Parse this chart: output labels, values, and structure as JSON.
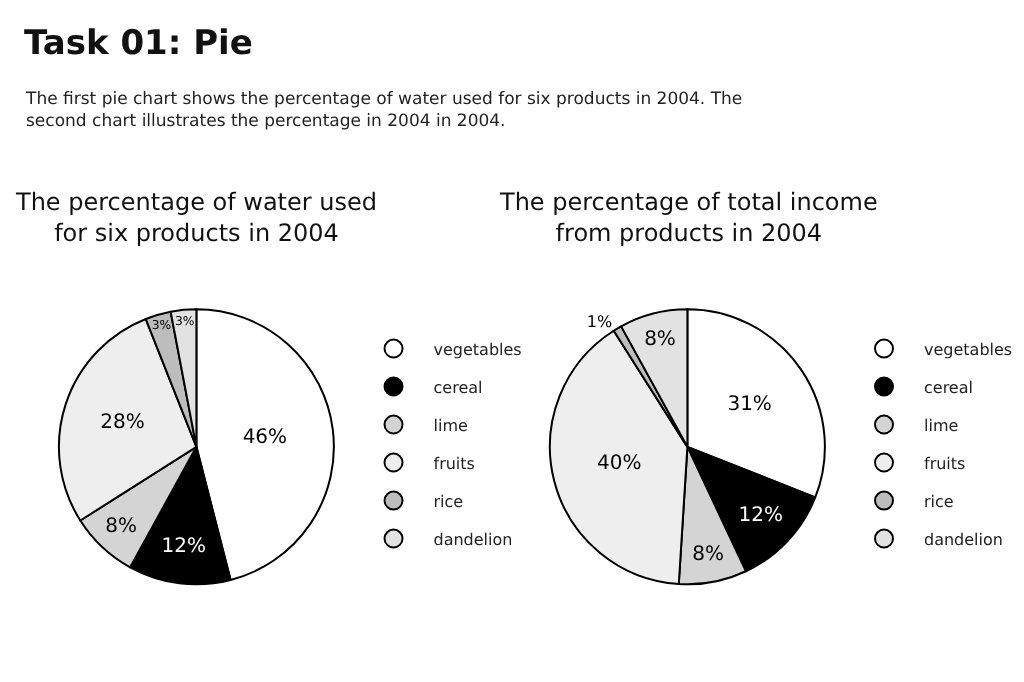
{
  "chart_data": [
    {
      "type": "pie",
      "title": "The percentage of water used\nfor six products in 2004",
      "annotations": [
        "Task 01: Pie",
        "The first pie chart shows the percentage of water used for six products in 2004. The\nsecond chart illustrates the percentage in 2004 in 2004."
      ],
      "categories": [
        "vegetables",
        "cereal",
        "lime",
        "fruits",
        "rice",
        "dandelion"
      ],
      "values": [
        46,
        12,
        8,
        28,
        3,
        3
      ],
      "value_labels": [
        "46%",
        "12%",
        "8%",
        "28%",
        "3%",
        "3%"
      ],
      "colors": [
        "#ffffff",
        "#000000",
        "#d4d4d4",
        "#eeeeee",
        "#bdbdbd",
        "#e2e2e2"
      ],
      "legend": "right"
    },
    {
      "type": "pie",
      "title": "The percentage of total income\nfrom products in 2004",
      "categories": [
        "vegetables",
        "cereal",
        "lime",
        "fruits",
        "rice",
        "dandelion"
      ],
      "values": [
        31,
        12,
        8,
        40,
        1,
        8
      ],
      "value_labels": [
        "31%",
        "12%",
        "8%",
        "40%",
        "1%",
        "8%"
      ],
      "colors": [
        "#ffffff",
        "#000000",
        "#d4d4d4",
        "#eeeeee",
        "#bdbdbd",
        "#e2e2e2"
      ],
      "legend": "right"
    }
  ]
}
